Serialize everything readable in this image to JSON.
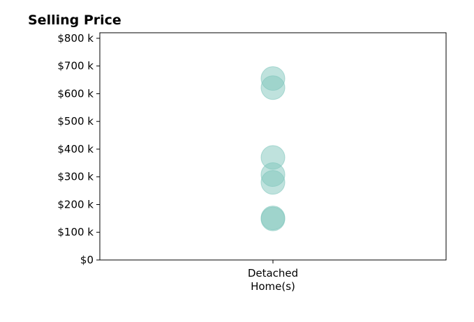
{
  "chart_data": {
    "type": "scatter",
    "title": "Selling Price",
    "xlabel": "",
    "ylabel": "",
    "categories": [
      "Detached\nHome(s)"
    ],
    "y_ticks": [
      0,
      100000,
      200000,
      300000,
      400000,
      500000,
      600000,
      700000,
      800000
    ],
    "y_tick_labels": [
      "$0",
      "$100 k",
      "$200 k",
      "$300 k",
      "$400 k",
      "$500 k",
      "$600 k",
      "$700 k",
      "$800 k"
    ],
    "ylim": [
      0,
      820000
    ],
    "grid": false,
    "series": [
      {
        "category": "Detached\nHome(s)",
        "values": [
          655000,
          622000,
          370000,
          308000,
          280000,
          152000,
          148000
        ],
        "color": "#7fc6bc"
      }
    ]
  }
}
